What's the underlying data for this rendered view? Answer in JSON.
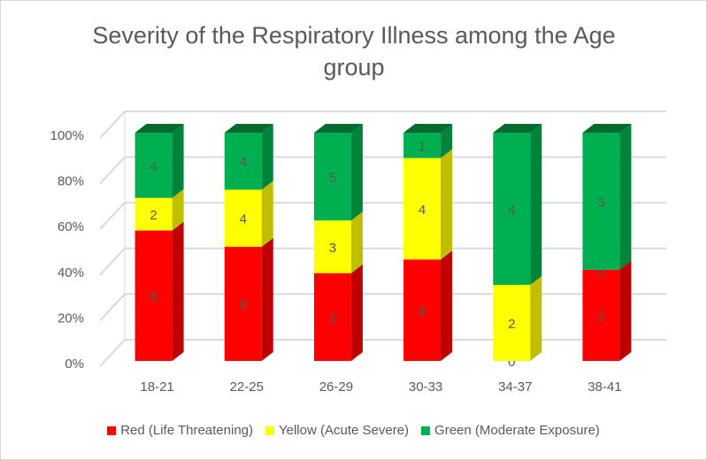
{
  "chart_data": {
    "type": "bar",
    "stacked_percent": true,
    "three_d": true,
    "title": "Severity of the Respiratory Illness among the Age group",
    "categories": [
      "18-21",
      "22-25",
      "26-29",
      "30-33",
      "34-37",
      "38-41"
    ],
    "series": [
      {
        "name": "Red (Life Threatening)",
        "color": "#ff0000",
        "values": [
          8,
          8,
          5,
          4,
          0,
          2
        ]
      },
      {
        "name": "Yellow (Acute Severe)",
        "color": "#ffff00",
        "values": [
          2,
          4,
          3,
          4,
          2,
          0
        ]
      },
      {
        "name": "Green (Moderate Exposure)",
        "color": "#00b050",
        "values": [
          4,
          4,
          5,
          1,
          4,
          3
        ]
      }
    ],
    "ylim": [
      0,
      100
    ],
    "yticks": [
      {
        "value": 0,
        "label": "0%"
      },
      {
        "value": 20,
        "label": "20%"
      },
      {
        "value": 40,
        "label": "40%"
      },
      {
        "value": 60,
        "label": "60%"
      },
      {
        "value": 80,
        "label": "80%"
      },
      {
        "value": 100,
        "label": "100%"
      }
    ],
    "grid": true,
    "legend": "bottom"
  }
}
